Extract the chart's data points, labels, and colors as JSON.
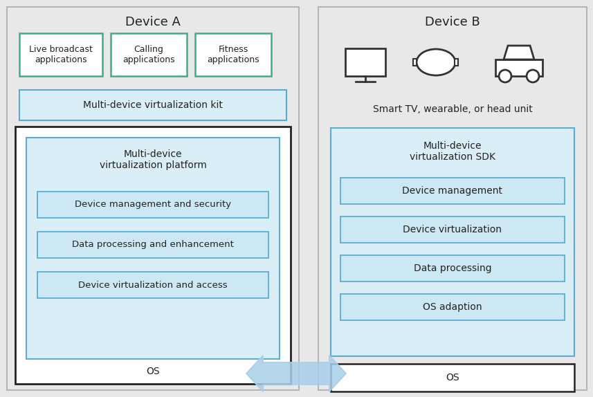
{
  "bg_color": "#e8e8e8",
  "white": "#ffffff",
  "light_blue_fill": "#cce8f4",
  "light_blue_fill2": "#daeef8",
  "teal_border": "#3dab8e",
  "blue_border": "#5bacd4",
  "dark_border": "#222222",
  "gray_border": "#aaaaaa",
  "arrow_color": "#a8cfe8",
  "text_color": "#222222",
  "device_a_title": "Device A",
  "device_b_title": "Device B",
  "app_boxes": [
    "Live broadcast\napplications",
    "Calling\napplications",
    "Fitness\napplications"
  ],
  "kit_label": "Multi-device virtualization kit",
  "os_label_a": "OS",
  "os_label_b": "OS",
  "platform_label": "Multi-device\nvirtualization platform",
  "platform_items": [
    "Device management and security",
    "Data processing and enhancement",
    "Device virtualization and access"
  ],
  "sdk_label": "Multi-device\nvirtualization SDK",
  "sdk_items": [
    "Device management",
    "Device virtualization",
    "Data processing",
    "OS adaption"
  ],
  "device_b_subtitle": "Smart TV, wearable, or head unit"
}
